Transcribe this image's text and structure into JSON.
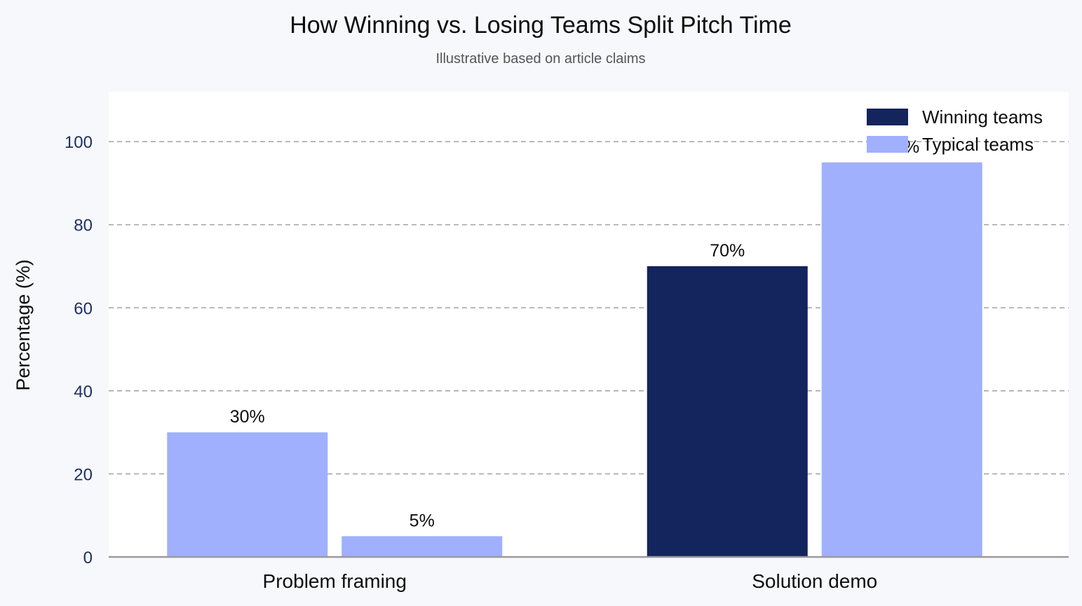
{
  "chart_data": {
    "type": "bar",
    "title": "How Winning vs. Losing Teams Split Pitch Time",
    "subtitle": "Illustrative based on article claims",
    "xlabel": "",
    "ylabel": "Percentage (%)",
    "ylim": [
      0,
      112
    ],
    "yticks": [
      0,
      20,
      40,
      60,
      80,
      100
    ],
    "grid": true,
    "legend_position": "top-right",
    "categories": [
      "Problem framing",
      "Solution demo"
    ],
    "bars": [
      {
        "category": "Problem framing",
        "value": 30,
        "label": "30%",
        "color": "#a0b0fd"
      },
      {
        "category": "Problem framing",
        "value": 5,
        "label": "5%",
        "color": "#a0b0fd"
      },
      {
        "category": "Solution demo",
        "value": 70,
        "label": "70%",
        "color": "#14245c"
      },
      {
        "category": "Solution demo",
        "value": 95,
        "label": "95%",
        "color": "#a0b0fd"
      }
    ],
    "legend": [
      {
        "name": "Winning teams",
        "color": "#14245c"
      },
      {
        "name": "Typical teams",
        "color": "#a0b0fd"
      }
    ]
  }
}
